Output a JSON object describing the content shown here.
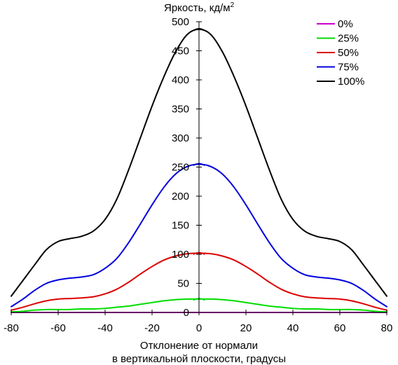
{
  "chart_data": {
    "type": "line",
    "ylabel": "Яркость, кд/м",
    "ylabel_sup": "2",
    "xlabel_line1": "Отклонение от нормали",
    "xlabel_line2": "в вертикальной плоскости, градусы",
    "xlim": [
      -80,
      80
    ],
    "ylim": [
      0,
      500
    ],
    "xticks": [
      -80,
      -60,
      -40,
      -20,
      0,
      20,
      40,
      60,
      80
    ],
    "yticks": [
      0,
      50,
      100,
      150,
      200,
      250,
      300,
      350,
      400,
      450,
      500
    ],
    "grid": false,
    "legend_position": "top-right",
    "x": [
      -80,
      -75,
      -70,
      -65,
      -60,
      -55,
      -50,
      -45,
      -40,
      -35,
      -30,
      -25,
      -20,
      -15,
      -10,
      -5,
      0,
      5,
      10,
      15,
      20,
      25,
      30,
      35,
      40,
      45,
      50,
      55,
      60,
      65,
      70,
      75,
      80
    ],
    "series": [
      {
        "name": "0%",
        "color": "#cc00cc",
        "values": [
          0,
          0,
          0,
          0,
          0,
          0,
          0,
          0,
          0,
          0,
          0,
          0,
          0,
          0,
          0,
          0,
          0,
          0,
          0,
          0,
          0,
          0,
          0,
          0,
          0,
          0,
          0,
          0,
          0,
          0,
          0,
          0,
          0
        ]
      },
      {
        "name": "25%",
        "color": "#00dd00",
        "values": [
          1,
          2,
          4,
          5,
          5,
          5,
          6,
          6,
          7,
          9,
          11,
          14,
          17,
          20,
          22,
          23,
          23,
          23,
          22,
          20,
          17,
          14,
          11,
          9,
          7,
          6,
          6,
          5,
          5,
          5,
          4,
          2,
          1
        ]
      },
      {
        "name": "50%",
        "color": "#dd0000",
        "values": [
          4,
          9,
          15,
          20,
          23,
          24,
          25,
          27,
          32,
          40,
          52,
          66,
          79,
          90,
          97,
          101,
          102,
          101,
          97,
          90,
          79,
          66,
          52,
          40,
          32,
          27,
          25,
          24,
          23,
          20,
          15,
          9,
          4
        ]
      },
      {
        "name": "75%",
        "color": "#0000dd",
        "values": [
          10,
          23,
          38,
          50,
          56,
          59,
          61,
          65,
          76,
          93,
          120,
          152,
          185,
          215,
          238,
          251,
          255,
          251,
          238,
          215,
          185,
          152,
          120,
          93,
          76,
          65,
          61,
          59,
          56,
          50,
          38,
          23,
          10
        ]
      },
      {
        "name": "100%",
        "color": "#000000",
        "values": [
          28,
          55,
          82,
          108,
          122,
          127,
          131,
          140,
          160,
          195,
          245,
          300,
          355,
          405,
          448,
          478,
          487,
          478,
          448,
          405,
          355,
          300,
          245,
          195,
          160,
          140,
          131,
          127,
          122,
          108,
          82,
          55,
          28
        ]
      }
    ]
  }
}
